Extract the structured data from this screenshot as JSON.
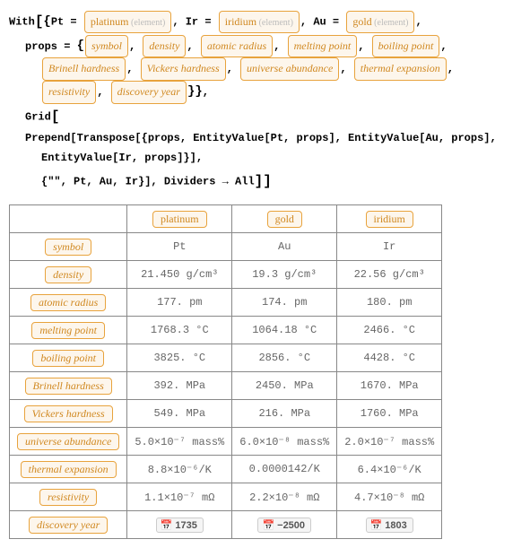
{
  "code": {
    "with": "With",
    "pt": "Pt = ",
    "ir": "Ir = ",
    "au": "Au = ",
    "platinum": "platinum",
    "iridium": "iridium",
    "gold": "gold",
    "element": " (element)",
    "props": "props = ",
    "grid": "Grid",
    "prepend": "Prepend[Transpose[{props, EntityValue[Pt, props], EntityValue[Au, props],",
    "prepend2": "EntityValue[Ir, props]}],",
    "prepend3": "{\"\", Pt, Au, Ir}], Dividers → All",
    "p": {
      "symbol": "symbol",
      "density": "density",
      "atomic_radius": "atomic radius",
      "melting_point": "melting point",
      "boiling_point": "boiling point",
      "brinell": "Brinell hardness",
      "vickers": "Vickers hardness",
      "universe": "universe abundance",
      "thermal": "thermal expansion",
      "resistivity": "resistivity",
      "discovery": "discovery year"
    }
  },
  "table": {
    "headers": {
      "blank": "",
      "pt": "platinum",
      "au": "gold",
      "ir": "iridium"
    },
    "rows": {
      "symbol": {
        "label": "symbol",
        "pt": "Pt",
        "au": "Au",
        "ir": "Ir"
      },
      "density": {
        "label": "density",
        "pt": "21.450 g/cm³",
        "au": "19.3 g/cm³",
        "ir": "22.56 g/cm³"
      },
      "atomic_radius": {
        "label": "atomic radius",
        "pt": "177. pm",
        "au": "174. pm",
        "ir": "180. pm"
      },
      "melting_point": {
        "label": "melting point",
        "pt": "1768.3 °C",
        "au": "1064.18 °C",
        "ir": "2466. °C"
      },
      "boiling_point": {
        "label": "boiling point",
        "pt": "3825. °C",
        "au": "2856. °C",
        "ir": "4428. °C"
      },
      "brinell": {
        "label": "Brinell hardness",
        "pt": "392. MPa",
        "au": "2450. MPa",
        "ir": "1670. MPa"
      },
      "vickers": {
        "label": "Vickers hardness",
        "pt": "549. MPa",
        "au": "216. MPa",
        "ir": "1760. MPa"
      },
      "universe": {
        "label": "universe abundance",
        "pt": "5.0×10⁻⁷ mass%",
        "au": "6.0×10⁻⁸ mass%",
        "ir": "2.0×10⁻⁷ mass%"
      },
      "thermal": {
        "label": "thermal expansion",
        "pt": "8.8×10⁻⁶/K",
        "au": "0.0000142/K",
        "ir": "6.4×10⁻⁶/K"
      },
      "resistivity": {
        "label": "resistivity",
        "pt": "1.1×10⁻⁷ mΩ",
        "au": "2.2×10⁻⁸ mΩ",
        "ir": "4.7×10⁻⁸ mΩ"
      },
      "discovery": {
        "label": "discovery year",
        "pt": "1735",
        "au": "−2500",
        "ir": "1803"
      }
    }
  }
}
